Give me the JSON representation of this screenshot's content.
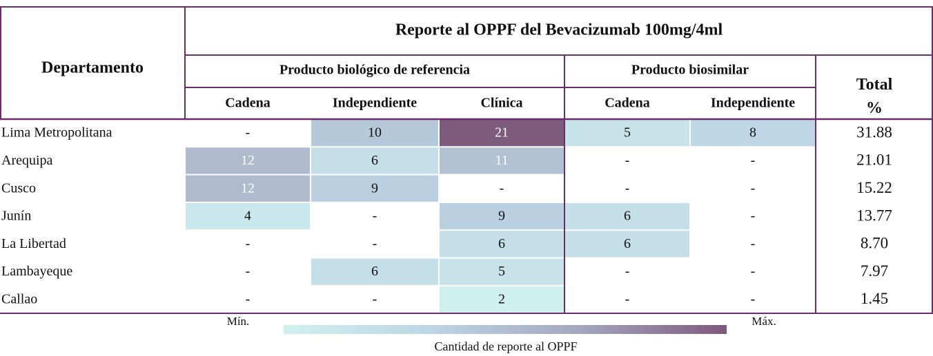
{
  "header": {
    "title": "Reporte al OPPF del Bevacizumab 100mg/4ml",
    "row_label": "Departamento",
    "groups": [
      "Producto biológico de referencia",
      "Producto biosimilar"
    ],
    "total_label": "Total\n%",
    "columns": [
      "Cadena",
      "Independiente",
      "Clínica",
      "Cadena",
      "Independiente"
    ]
  },
  "table": {
    "rows": [
      [
        "Lima Metropolitana",
        "-",
        10,
        21,
        5,
        8,
        "31.88"
      ],
      [
        "Arequipa",
        12,
        6,
        11,
        "-",
        "-",
        "21.01"
      ],
      [
        "Cusco",
        12,
        9,
        "-",
        "-",
        "-",
        "15.22"
      ],
      [
        "Junín",
        4,
        "-",
        9,
        6,
        "-",
        "13.77"
      ],
      [
        "La Libertad",
        "-",
        "-",
        6,
        6,
        "-",
        "8.70"
      ],
      [
        "Lambayeque",
        "-",
        6,
        5,
        "-",
        "-",
        "7.97"
      ],
      [
        "Callao",
        "-",
        "-",
        2,
        "-",
        "-",
        "1.45"
      ]
    ]
  },
  "legend": {
    "min_label": "Mín.",
    "max_label": "Máx.",
    "caption": "Cantidad de reporte al OPPF",
    "colors": [
      "#d0f0ee",
      "#bdd5e4",
      "#a4a7be",
      "#7e5a7c"
    ]
  }
}
